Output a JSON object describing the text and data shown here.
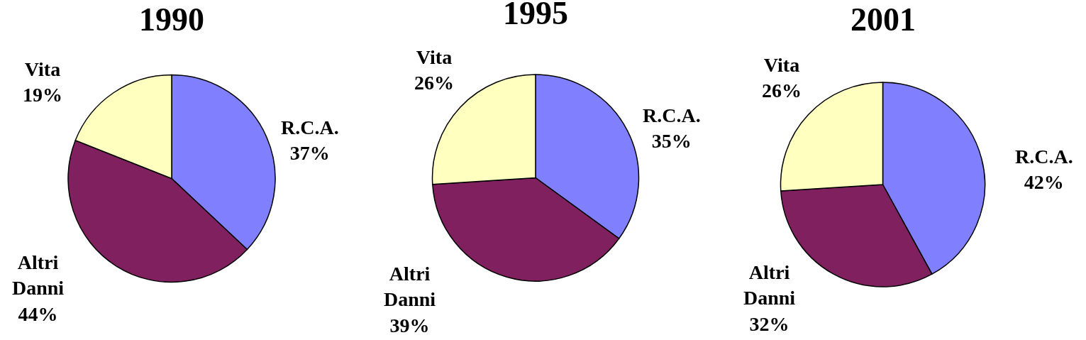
{
  "chart_data": [
    {
      "type": "pie",
      "title": "1990",
      "categories": [
        "R.C.A.",
        "Altri Danni",
        "Vita"
      ],
      "values": [
        37,
        44,
        19
      ],
      "value_labels": [
        "37%",
        "44%",
        "19%"
      ],
      "colors": [
        "#8080ff",
        "#80205f",
        "#ffffc0"
      ]
    },
    {
      "type": "pie",
      "title": "1995",
      "categories": [
        "R.C.A.",
        "Altri Danni",
        "Vita"
      ],
      "values": [
        35,
        39,
        26
      ],
      "value_labels": [
        "35%",
        "39%",
        "26%"
      ],
      "colors": [
        "#8080ff",
        "#80205f",
        "#ffffc0"
      ]
    },
    {
      "type": "pie",
      "title": "2001",
      "categories": [
        "R.C.A.",
        "Altri Danni",
        "Vita"
      ],
      "values": [
        42,
        32,
        26
      ],
      "value_labels": [
        "42%",
        "32%",
        "26%"
      ],
      "colors": [
        "#8080ff",
        "#80205f",
        "#ffffc0"
      ]
    }
  ]
}
